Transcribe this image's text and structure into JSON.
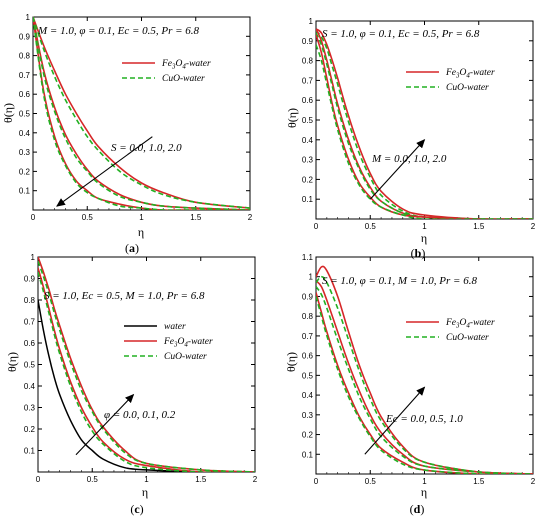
{
  "colors": {
    "fe3o4": "#d62728",
    "cuo": "#22b022",
    "water": "#000000",
    "axis": "#000000"
  },
  "chart_data": [
    {
      "id": "a",
      "type": "line",
      "panel_label": "a",
      "params": "M = 1.0, φ = 0.1, Ec = 0.5, Pr = 6.8",
      "xlabel": "η",
      "ylabel": "θ(η)",
      "xlim": [
        0,
        2
      ],
      "ylim": [
        0,
        1
      ],
      "xticks": [
        0,
        0.5,
        1,
        1.5,
        2
      ],
      "xtick_labels": [
        "0",
        "0.5",
        "1",
        "1.5",
        "2"
      ],
      "yticks": [
        0.1,
        0.2,
        0.3,
        0.4,
        0.5,
        0.6,
        0.7,
        0.8,
        0.9,
        1
      ],
      "ytick_labels": [
        "0.1",
        "0.2",
        "0.3",
        "0.4",
        "0.5",
        "0.6",
        "0.7",
        "0.8",
        "0.9",
        "1"
      ],
      "legend": [
        {
          "label_main": "Fe",
          "label_sub": "3",
          "label_mid": "O",
          "label_sub2": "4",
          "label_tail": "-water",
          "style": "fe3o4"
        },
        {
          "label_main": "CuO-water",
          "style": "cuo"
        }
      ],
      "annotation": "S = 0.0, 1.0, 2.0",
      "series": [
        {
          "group": "S = 0.0",
          "x": [
            0,
            0.1,
            0.2,
            0.3,
            0.4,
            0.5,
            0.6,
            0.8,
            1.0,
            1.2,
            1.5,
            2.0
          ],
          "fe3o4": [
            1.0,
            0.85,
            0.72,
            0.6,
            0.5,
            0.41,
            0.33,
            0.22,
            0.14,
            0.09,
            0.04,
            0.01
          ],
          "cuo": [
            1.0,
            0.83,
            0.69,
            0.57,
            0.47,
            0.38,
            0.31,
            0.2,
            0.13,
            0.08,
            0.04,
            0.01
          ]
        },
        {
          "group": "S = 1.0",
          "x": [
            0,
            0.1,
            0.2,
            0.3,
            0.4,
            0.5,
            0.6,
            0.8,
            1.0,
            1.2,
            1.5,
            2.0
          ],
          "fe3o4": [
            1.0,
            0.72,
            0.53,
            0.39,
            0.29,
            0.21,
            0.15,
            0.08,
            0.04,
            0.02,
            0.01,
            0.0
          ],
          "cuo": [
            1.0,
            0.7,
            0.51,
            0.37,
            0.27,
            0.2,
            0.14,
            0.07,
            0.04,
            0.02,
            0.01,
            0.0
          ]
        },
        {
          "group": "S = 2.0",
          "x": [
            0,
            0.1,
            0.2,
            0.3,
            0.4,
            0.5,
            0.6,
            0.8,
            1.0,
            1.2,
            1.5,
            2.0
          ],
          "fe3o4": [
            1.0,
            0.61,
            0.38,
            0.24,
            0.15,
            0.1,
            0.06,
            0.03,
            0.01,
            0.0,
            0.0,
            0.0
          ],
          "cuo": [
            1.0,
            0.59,
            0.36,
            0.23,
            0.14,
            0.09,
            0.06,
            0.02,
            0.01,
            0.0,
            0.0,
            0.0
          ]
        }
      ],
      "arrow": {
        "from": [
          1.1,
          0.38
        ],
        "to": [
          0.22,
          0.02
        ]
      }
    },
    {
      "id": "b",
      "type": "line",
      "panel_label": "b",
      "params": "S = 1.0, φ = 0.1, Ec = 0.5, Pr = 6.8",
      "xlabel": "η",
      "ylabel": "θ(η)",
      "xlim": [
        0,
        2
      ],
      "ylim": [
        0,
        1
      ],
      "xticks": [
        0,
        0.5,
        1,
        1.5,
        2
      ],
      "xtick_labels": [
        "0",
        "0.5",
        "1",
        "1.5",
        "2"
      ],
      "yticks": [
        0.1,
        0.2,
        0.3,
        0.4,
        0.5,
        0.6,
        0.7,
        0.8,
        0.9,
        1
      ],
      "ytick_labels": [
        "0.1",
        "0.2",
        "0.3",
        "0.4",
        "0.5",
        "0.6",
        "0.7",
        "0.8",
        "0.9",
        "1"
      ],
      "legend": [
        {
          "label_main": "Fe",
          "label_sub": "3",
          "label_mid": "O",
          "label_sub2": "4",
          "label_tail": "-water",
          "style": "fe3o4"
        },
        {
          "label_main": "CuO-water",
          "style": "cuo"
        }
      ],
      "annotation": "M = 0.0, 1.0, 2.0",
      "series": [
        {
          "group": "M = 0.0",
          "x": [
            0,
            0.05,
            0.1,
            0.15,
            0.2,
            0.3,
            0.4,
            0.5,
            0.6,
            0.8,
            1.0,
            1.5,
            2.0
          ],
          "fe3o4": [
            0.96,
            0.94,
            0.88,
            0.8,
            0.71,
            0.52,
            0.36,
            0.23,
            0.14,
            0.05,
            0.02,
            0.0,
            0.0
          ],
          "cuo": [
            0.95,
            0.92,
            0.86,
            0.77,
            0.68,
            0.49,
            0.33,
            0.21,
            0.12,
            0.04,
            0.01,
            0.0,
            0.0
          ]
        },
        {
          "group": "M = 1.0",
          "x": [
            0,
            0.05,
            0.1,
            0.15,
            0.2,
            0.3,
            0.4,
            0.5,
            0.6,
            0.8,
            1.0,
            1.5,
            2.0
          ],
          "fe3o4": [
            0.96,
            0.9,
            0.8,
            0.69,
            0.58,
            0.4,
            0.26,
            0.16,
            0.09,
            0.03,
            0.01,
            0.0,
            0.0
          ],
          "cuo": [
            0.94,
            0.88,
            0.78,
            0.67,
            0.56,
            0.38,
            0.25,
            0.15,
            0.09,
            0.03,
            0.01,
            0.0,
            0.0
          ]
        },
        {
          "group": "M = 2.0",
          "x": [
            0,
            0.05,
            0.1,
            0.15,
            0.2,
            0.3,
            0.4,
            0.5,
            0.6,
            0.8,
            1.0,
            1.5,
            2.0
          ],
          "fe3o4": [
            0.93,
            0.84,
            0.71,
            0.58,
            0.47,
            0.3,
            0.18,
            0.11,
            0.06,
            0.02,
            0.01,
            0.0,
            0.0
          ],
          "cuo": [
            0.88,
            0.8,
            0.68,
            0.56,
            0.45,
            0.28,
            0.17,
            0.1,
            0.06,
            0.02,
            0.0,
            0.0,
            0.0
          ]
        }
      ],
      "arrow": {
        "from": [
          0.5,
          0.1
        ],
        "to": [
          1.0,
          0.4
        ]
      }
    },
    {
      "id": "c",
      "type": "line",
      "panel_label": "c",
      "params": "S = 1.0, Ec = 0.5, M = 1.0, Pr = 6.8",
      "xlabel": "η",
      "ylabel": "θ(η)",
      "xlim": [
        0,
        2
      ],
      "ylim": [
        0,
        1
      ],
      "xticks": [
        0,
        0.5,
        1,
        1.5,
        2
      ],
      "xtick_labels": [
        "0",
        "0.5",
        "1",
        "1.5",
        "2"
      ],
      "yticks": [
        0.1,
        0.2,
        0.3,
        0.4,
        0.5,
        0.6,
        0.7,
        0.8,
        0.9,
        1
      ],
      "ytick_labels": [
        "0.1",
        "0.2",
        "0.3",
        "0.4",
        "0.5",
        "0.6",
        "0.7",
        "0.8",
        "0.9",
        "1"
      ],
      "legend": [
        {
          "label_main": "water",
          "style": "water"
        },
        {
          "label_main": "Fe",
          "label_sub": "3",
          "label_mid": "O",
          "label_sub2": "4",
          "label_tail": "-water",
          "style": "fe3o4"
        },
        {
          "label_main": "CuO-water",
          "style": "cuo"
        }
      ],
      "annotation": "φ = 0.0, 0.1, 0.2",
      "series": [
        {
          "group": "φ = 0.0",
          "x": [
            0,
            0.05,
            0.1,
            0.15,
            0.2,
            0.3,
            0.4,
            0.5,
            0.6,
            0.8,
            1.0,
            1.5,
            2.0
          ],
          "water": [
            0.8,
            0.66,
            0.54,
            0.44,
            0.36,
            0.24,
            0.15,
            0.1,
            0.06,
            0.02,
            0.01,
            0.0,
            0.0
          ]
        },
        {
          "group": "φ = 0.1",
          "x": [
            0,
            0.05,
            0.1,
            0.15,
            0.2,
            0.3,
            0.4,
            0.5,
            0.6,
            0.8,
            1.0,
            1.5,
            2.0
          ],
          "fe3o4": [
            0.95,
            0.86,
            0.76,
            0.66,
            0.57,
            0.42,
            0.3,
            0.21,
            0.14,
            0.06,
            0.03,
            0.0,
            0.0
          ],
          "cuo": [
            0.93,
            0.84,
            0.74,
            0.64,
            0.55,
            0.4,
            0.28,
            0.19,
            0.13,
            0.05,
            0.02,
            0.0,
            0.0
          ]
        },
        {
          "group": "φ = 0.2",
          "x": [
            0,
            0.05,
            0.1,
            0.15,
            0.2,
            0.3,
            0.4,
            0.5,
            0.6,
            0.8,
            1.0,
            1.5,
            2.0
          ],
          "fe3o4": [
            1.0,
            0.93,
            0.85,
            0.76,
            0.68,
            0.53,
            0.4,
            0.29,
            0.21,
            0.1,
            0.04,
            0.01,
            0.0
          ],
          "cuo": [
            0.98,
            0.91,
            0.83,
            0.74,
            0.66,
            0.51,
            0.38,
            0.28,
            0.2,
            0.09,
            0.04,
            0.01,
            0.0
          ]
        }
      ],
      "arrow": {
        "from": [
          0.35,
          0.08
        ],
        "to": [
          0.88,
          0.36
        ]
      }
    },
    {
      "id": "d",
      "type": "line",
      "panel_label": "d",
      "params": "S = 1.0, φ = 0.1, M = 1.0, Pr = 6.8",
      "xlabel": "η",
      "ylabel": "θ(η)",
      "xlim": [
        0,
        2
      ],
      "ylim": [
        0,
        1.1
      ],
      "xticks": [
        0,
        0.5,
        1,
        1.5,
        2
      ],
      "xtick_labels": [
        "0",
        "0.5",
        "1",
        "1.5",
        "2"
      ],
      "yticks": [
        0.1,
        0.2,
        0.3,
        0.4,
        0.5,
        0.6,
        0.7,
        0.8,
        0.9,
        1,
        1.1
      ],
      "ytick_labels": [
        "0.1",
        "0.2",
        "0.3",
        "0.4",
        "0.5",
        "0.6",
        "0.7",
        "0.8",
        "0.9",
        "1",
        "1.1"
      ],
      "legend": [
        {
          "label_main": "Fe",
          "label_sub": "3",
          "label_mid": "O",
          "label_sub2": "4",
          "label_tail": "-water",
          "style": "fe3o4"
        },
        {
          "label_main": "CuO-water",
          "style": "cuo"
        }
      ],
      "annotation": "Ec = 0.0, 0.5, 1.0",
      "series": [
        {
          "group": "Ec = 0.0",
          "x": [
            0,
            0.05,
            0.1,
            0.2,
            0.3,
            0.4,
            0.5,
            0.6,
            0.8,
            1.0,
            1.5,
            2.0
          ],
          "fe3o4": [
            0.92,
            0.82,
            0.72,
            0.55,
            0.41,
            0.29,
            0.2,
            0.13,
            0.06,
            0.02,
            0.0,
            0.0
          ],
          "cuo": [
            0.9,
            0.8,
            0.7,
            0.53,
            0.39,
            0.28,
            0.19,
            0.12,
            0.05,
            0.02,
            0.0,
            0.0
          ]
        },
        {
          "group": "Ec = 0.5",
          "x": [
            0,
            0.05,
            0.1,
            0.2,
            0.3,
            0.4,
            0.5,
            0.6,
            0.8,
            1.0,
            1.5,
            2.0
          ],
          "fe3o4": [
            0.98,
            0.95,
            0.88,
            0.72,
            0.56,
            0.42,
            0.3,
            0.21,
            0.1,
            0.04,
            0.01,
            0.0
          ],
          "cuo": [
            0.95,
            0.91,
            0.84,
            0.68,
            0.53,
            0.39,
            0.28,
            0.19,
            0.09,
            0.04,
            0.01,
            0.0
          ]
        },
        {
          "group": "Ec = 1.0",
          "x": [
            0,
            0.05,
            0.1,
            0.2,
            0.3,
            0.4,
            0.5,
            0.6,
            0.8,
            1.0,
            1.5,
            2.0
          ],
          "fe3o4": [
            1.0,
            1.05,
            1.03,
            0.9,
            0.72,
            0.55,
            0.41,
            0.29,
            0.14,
            0.06,
            0.01,
            0.0
          ],
          "cuo": [
            0.97,
            1.0,
            0.97,
            0.84,
            0.68,
            0.52,
            0.38,
            0.27,
            0.13,
            0.06,
            0.01,
            0.0
          ]
        }
      ],
      "arrow": {
        "from": [
          0.45,
          0.1
        ],
        "to": [
          1.0,
          0.44
        ]
      }
    }
  ]
}
